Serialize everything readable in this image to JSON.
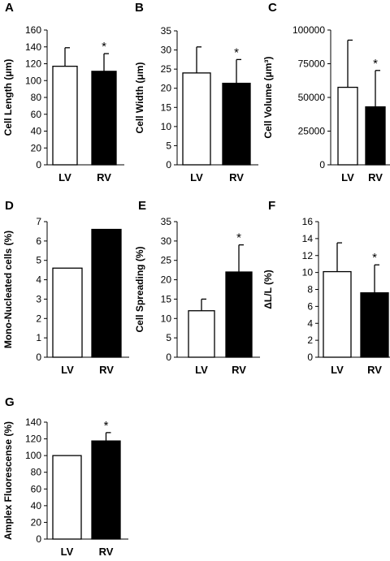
{
  "chart_data": [
    {
      "panel": "A",
      "type": "bar",
      "categories": [
        "LV",
        "RV"
      ],
      "values": [
        117,
        111
      ],
      "errors": [
        22,
        21
      ],
      "fills": [
        "#ffffff",
        "#000000"
      ],
      "significance": [
        "",
        "*"
      ],
      "ylabel": "Cell Length (μm)",
      "ylim": [
        0,
        160
      ],
      "yticks": [
        "0",
        "20",
        "40",
        "60",
        "80",
        "100",
        "120",
        "140",
        "160"
      ],
      "grid": false
    },
    {
      "panel": "B",
      "type": "bar",
      "categories": [
        "LV",
        "RV"
      ],
      "values": [
        24,
        21.3
      ],
      "errors": [
        6.8,
        6.2
      ],
      "fills": [
        "#ffffff",
        "#000000"
      ],
      "significance": [
        "",
        "*"
      ],
      "ylabel": "Cell Width (μm)",
      "ylim": [
        0,
        35
      ],
      "yticks": [
        "0",
        "5",
        "10",
        "15",
        "20",
        "25",
        "30",
        "35"
      ],
      "grid": false
    },
    {
      "panel": "C",
      "type": "bar",
      "categories": [
        "LV",
        "RV"
      ],
      "values": [
        57500,
        43000
      ],
      "errors": [
        35000,
        27000
      ],
      "fills": [
        "#ffffff",
        "#000000"
      ],
      "significance": [
        "",
        "*"
      ],
      "ylabel": "Cell Volume (μm³)",
      "ylim": [
        0,
        100000
      ],
      "yticks": [
        "0",
        "25000",
        "50000",
        "75000",
        "100000"
      ],
      "grid": false
    },
    {
      "panel": "D",
      "type": "bar",
      "categories": [
        "LV",
        "RV"
      ],
      "values": [
        4.6,
        6.6
      ],
      "errors": [
        0,
        0
      ],
      "fills": [
        "#ffffff",
        "#000000"
      ],
      "significance": [
        "",
        ""
      ],
      "ylabel": "Mono-Nucleated cells (%)",
      "ylim": [
        0,
        7
      ],
      "yticks": [
        "0",
        "1",
        "2",
        "3",
        "4",
        "5",
        "6",
        "7"
      ],
      "grid": false
    },
    {
      "panel": "E",
      "type": "bar",
      "categories": [
        "LV",
        "RV"
      ],
      "values": [
        12,
        22
      ],
      "errors": [
        3,
        7
      ],
      "fills": [
        "#ffffff",
        "#000000"
      ],
      "significance": [
        "",
        "*"
      ],
      "ylabel": "Cell Spreading (%)",
      "ylim": [
        0,
        35
      ],
      "yticks": [
        "0",
        "5",
        "10",
        "15",
        "20",
        "25",
        "30",
        "35"
      ],
      "grid": false
    },
    {
      "panel": "F",
      "type": "bar",
      "categories": [
        "LV",
        "RV"
      ],
      "values": [
        10.1,
        7.6
      ],
      "errors": [
        3.4,
        3.3
      ],
      "fills": [
        "#ffffff",
        "#000000"
      ],
      "significance": [
        "",
        "*"
      ],
      "ylabel": "ΔL/L (%)",
      "ylim": [
        0,
        16
      ],
      "yticks": [
        "0",
        "2",
        "4",
        "6",
        "8",
        "10",
        "12",
        "14",
        "16"
      ],
      "grid": false
    },
    {
      "panel": "G",
      "type": "bar",
      "categories": [
        "LV",
        "RV"
      ],
      "values": [
        100,
        117.5
      ],
      "errors": [
        0,
        10
      ],
      "fills": [
        "#ffffff",
        "#000000"
      ],
      "significance": [
        "",
        "*"
      ],
      "ylabel": "Amplex Fluorescense (%)",
      "ylim": [
        0,
        140
      ],
      "yticks": [
        "0",
        "20",
        "40",
        "60",
        "80",
        "100",
        "120",
        "140"
      ],
      "grid": false
    }
  ]
}
